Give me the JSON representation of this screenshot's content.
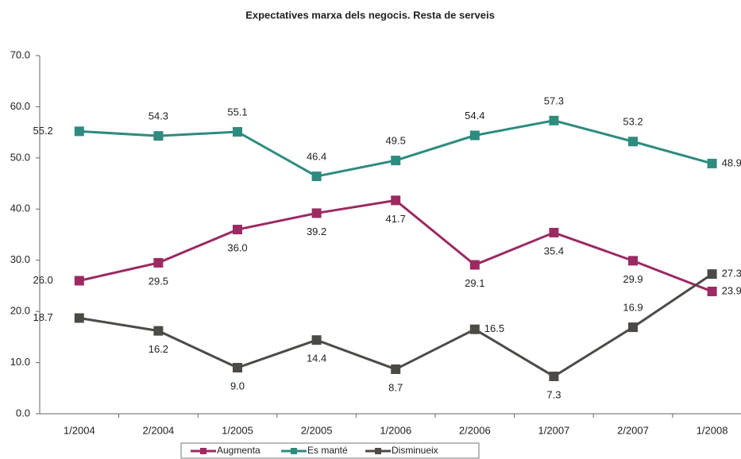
{
  "chart_data": {
    "type": "line",
    "title": "Expectatives marxa dels negocis. Resta de serveis",
    "categories": [
      "1/2004",
      "2/2004",
      "1/2005",
      "2/2005",
      "1/2006",
      "2/2006",
      "1/2007",
      "2/2007",
      "1/2008"
    ],
    "series": [
      {
        "name": "Augmenta",
        "color": "#9b2a63",
        "values": [
          26.0,
          29.5,
          36.0,
          39.2,
          41.7,
          29.1,
          35.4,
          29.9,
          23.9
        ],
        "value_labels": [
          "26.0",
          "29.5",
          "36.0",
          "39.2",
          "41.7",
          "29.1",
          "35.4",
          "29.9",
          "23.9"
        ]
      },
      {
        "name": "Es manté",
        "color": "#2e8b7f",
        "values": [
          55.2,
          54.3,
          55.1,
          46.4,
          49.5,
          54.4,
          57.3,
          53.2,
          48.9
        ],
        "value_labels": [
          "55.2",
          "54.3",
          "55.1",
          "46.4",
          "49.5",
          "54.4",
          "57.3",
          "53.2",
          "48.9"
        ]
      },
      {
        "name": "Disminueix",
        "color": "#4d4a46",
        "values": [
          18.7,
          16.2,
          9.0,
          14.4,
          8.7,
          16.5,
          7.3,
          16.9,
          27.3
        ],
        "value_labels": [
          "18.7",
          "16.2",
          "9.0",
          "14.4",
          "8.7",
          "16.5",
          "7.3",
          "16.9",
          "27.3"
        ]
      }
    ],
    "ylim": [
      0,
      70
    ],
    "yticks": [
      {
        "value": 0,
        "label": "0.0"
      },
      {
        "value": 10,
        "label": "10.0"
      },
      {
        "value": 20,
        "label": "20.0"
      },
      {
        "value": 30,
        "label": "30.0"
      },
      {
        "value": 40,
        "label": "40.0"
      },
      {
        "value": 50,
        "label": "50.0"
      },
      {
        "value": 60,
        "label": "60.0"
      },
      {
        "value": 70,
        "label": "70.0"
      }
    ],
    "grid": false
  }
}
